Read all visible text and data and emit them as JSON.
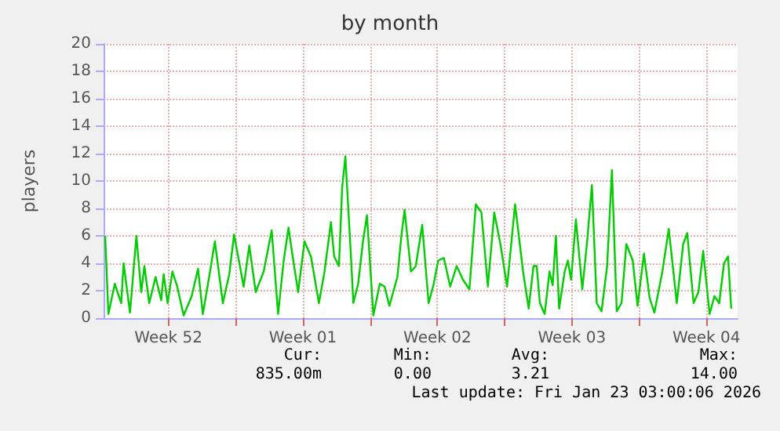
{
  "chart_data": {
    "type": "line",
    "title": "by month",
    "ylabel": "players",
    "x": [
      "2025-12-21T05:00",
      "2025-12-21T09:00",
      "2025-12-21T17:00",
      "2025-12-22T01:00",
      "2025-12-22T04:00",
      "2025-12-22T12:00",
      "2025-12-22T20:00",
      "2025-12-23T02:00",
      "2025-12-23T06:00",
      "2025-12-23T12:00",
      "2025-12-23T20:00",
      "2025-12-24T03:00",
      "2025-12-24T06:00",
      "2025-12-24T11:00",
      "2025-12-24T17:00",
      "2025-12-24T23:00",
      "2025-12-25T07:00",
      "2025-12-25T17:00",
      "2025-12-26T01:00",
      "2025-12-26T07:00",
      "2025-12-26T16:00",
      "2025-12-26T22:00",
      "2025-12-27T08:00",
      "2025-12-27T16:00",
      "2025-12-27T22:00",
      "2025-12-28T04:00",
      "2025-12-28T10:00",
      "2025-12-28T17:00",
      "2025-12-29T01:00",
      "2025-12-29T11:00",
      "2025-12-29T21:00",
      "2025-12-30T05:00",
      "2025-12-30T12:00",
      "2025-12-30T18:00",
      "2025-12-31T00:00",
      "2025-12-31T06:00",
      "2025-12-31T14:00",
      "2025-12-31T22:00",
      "2026-01-01T08:00",
      "2026-01-01T15:00",
      "2026-01-01T23:00",
      "2026-01-02T03:00",
      "2026-01-02T09:00",
      "2026-01-02T13:00",
      "2026-01-02T17:00",
      "2026-01-02T23:00",
      "2026-01-03T03:00",
      "2026-01-03T09:00",
      "2026-01-03T15:00",
      "2026-01-03T20:00",
      "2026-01-04T04:00",
      "2026-01-04T12:00",
      "2026-01-04T18:00",
      "2026-01-05T00:00",
      "2026-01-05T10:00",
      "2026-01-05T15:00",
      "2026-01-05T19:00",
      "2026-01-06T03:00",
      "2026-01-06T09:00",
      "2026-01-06T17:00",
      "2026-01-07T01:00",
      "2026-01-07T07:00",
      "2026-01-07T13:00",
      "2026-01-07T20:00",
      "2026-01-08T04:00",
      "2026-01-08T12:00",
      "2026-01-08T20:00",
      "2026-01-09T04:00",
      "2026-01-09T12:00",
      "2026-01-09T19:00",
      "2026-01-10T03:00",
      "2026-01-10T11:00",
      "2026-01-10T19:00",
      "2026-01-11T03:00",
      "2026-01-11T13:00",
      "2026-01-11T23:00",
      "2026-01-12T06:00",
      "2026-01-12T12:00",
      "2026-01-12T16:00",
      "2026-01-12T20:00",
      "2026-01-13T02:00",
      "2026-01-13T08:00",
      "2026-01-13T12:00",
      "2026-01-13T16:00",
      "2026-01-13T20:00",
      "2026-01-14T03:00",
      "2026-01-14T07:00",
      "2026-01-14T11:00",
      "2026-01-14T17:00",
      "2026-01-15T01:00",
      "2026-01-15T07:00",
      "2026-01-15T13:00",
      "2026-01-15T19:00",
      "2026-01-16T01:00",
      "2026-01-16T08:00",
      "2026-01-16T14:00",
      "2026-01-16T20:00",
      "2026-01-17T02:00",
      "2026-01-17T08:00",
      "2026-01-17T16:00",
      "2026-01-17T22:00",
      "2026-01-18T06:00",
      "2026-01-18T13:00",
      "2026-01-18T19:00",
      "2026-01-19T05:00",
      "2026-01-19T13:00",
      "2026-01-19T23:00",
      "2026-01-20T07:00",
      "2026-01-20T12:00",
      "2026-01-20T20:00",
      "2026-01-21T02:00",
      "2026-01-21T08:00",
      "2026-01-21T16:00",
      "2026-01-21T22:00",
      "2026-01-22T04:00",
      "2026-01-22T10:00",
      "2026-01-22T15:00",
      "2026-01-22T19:00"
    ],
    "series": [
      {
        "color": "#00cc00",
        "values": [
          6.0,
          0.3,
          2.5,
          1.1,
          4.0,
          0.4,
          6.0,
          1.9,
          3.8,
          1.1,
          3.0,
          1.3,
          3.2,
          1.1,
          3.4,
          2.3,
          0.2,
          1.6,
          3.6,
          0.3,
          3.4,
          5.6,
          1.1,
          3.2,
          6.1,
          4.2,
          2.3,
          5.3,
          1.9,
          3.4,
          6.4,
          0.3,
          4.2,
          6.6,
          4.2,
          1.9,
          5.6,
          4.5,
          1.1,
          3.4,
          7.0,
          4.5,
          3.8,
          9.5,
          11.8,
          5.6,
          1.1,
          2.5,
          5.6,
          7.5,
          0.2,
          2.5,
          2.3,
          0.9,
          3.0,
          6.0,
          7.9,
          3.4,
          3.8,
          6.8,
          1.1,
          2.4,
          4.2,
          4.4,
          2.3,
          3.8,
          2.8,
          2.1,
          8.3,
          7.7,
          2.3,
          7.7,
          5.3,
          2.3,
          8.3,
          3.4,
          0.7,
          3.8,
          3.8,
          1.1,
          0.3,
          3.4,
          2.4,
          6.0,
          0.7,
          3.4,
          4.2,
          2.8,
          7.2,
          2.1,
          5.6,
          9.7,
          1.1,
          0.5,
          3.8,
          10.8,
          0.5,
          1.1,
          5.4,
          4.2,
          0.9,
          4.7,
          1.5,
          0.4,
          3.4,
          6.5,
          1.1,
          5.4,
          6.2,
          1.1,
          1.9,
          4.9,
          0.3,
          1.6,
          1.1,
          4.0,
          4.5,
          0.7
        ]
      }
    ],
    "xlim": [
      "2025-12-21T03:00",
      "2026-01-23T03:00"
    ],
    "xticks": [
      {
        "value": "2025-12-24T12:00",
        "label": "Week 52"
      },
      {
        "value": "2025-12-28T00:00",
        "label": null
      },
      {
        "value": "2025-12-31T12:00",
        "label": "Week 01"
      },
      {
        "value": "2026-01-04T00:00",
        "label": null
      },
      {
        "value": "2026-01-07T12:00",
        "label": "Week 02"
      },
      {
        "value": "2026-01-11T00:00",
        "label": null
      },
      {
        "value": "2026-01-14T12:00",
        "label": "Week 03"
      },
      {
        "value": "2026-01-18T00:00",
        "label": null
      },
      {
        "value": "2026-01-21T12:00",
        "label": "Week 04"
      }
    ],
    "ylim": [
      0,
      20
    ],
    "yticks": [
      0,
      2,
      4,
      6,
      8,
      10,
      12,
      14,
      16,
      18,
      20
    ],
    "grid": true,
    "marker": "none",
    "line_style": "solid",
    "annotations": [
      "Cur:",
      "835.00m",
      "Min:",
      "0.00",
      "Avg:",
      "3.21",
      "Max:",
      "14.00",
      "Last update: Fri Jan 23 03:00:06 2026"
    ]
  }
}
